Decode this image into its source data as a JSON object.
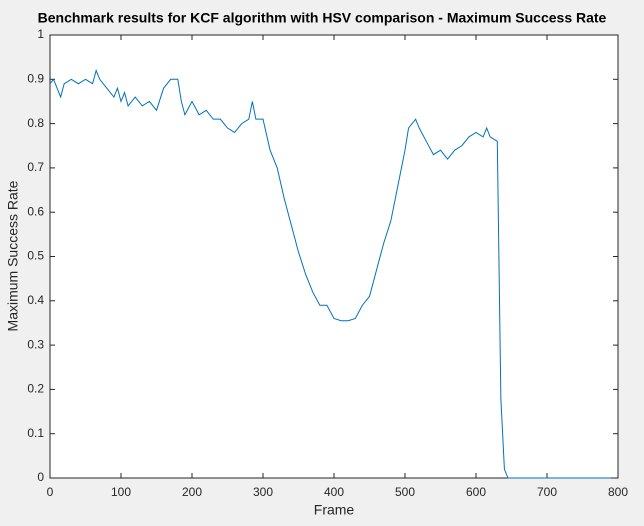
{
  "chart_data": {
    "type": "line",
    "title": "Benchmark results for KCF algorithm with HSV comparison - Maximum Success Rate",
    "x_label": "Frame",
    "y_label": "Maximum Success Rate",
    "xlim": [
      0,
      800
    ],
    "xticks": [
      0,
      100,
      200,
      300,
      400,
      500,
      600,
      700,
      800
    ],
    "ylim": [
      0,
      1
    ],
    "yticks": [
      0,
      0.1,
      0.2,
      0.3,
      0.4,
      0.5,
      0.6,
      0.7,
      0.8,
      0.9,
      1
    ],
    "grid": false,
    "series": [
      {
        "color": "#0072bd",
        "x": [
          0,
          5,
          10,
          15,
          20,
          30,
          40,
          50,
          60,
          65,
          70,
          80,
          90,
          95,
          100,
          105,
          110,
          120,
          130,
          140,
          150,
          160,
          170,
          180,
          185,
          190,
          200,
          210,
          220,
          230,
          240,
          250,
          260,
          270,
          280,
          285,
          290,
          300,
          310,
          320,
          330,
          340,
          350,
          360,
          370,
          380,
          390,
          400,
          410,
          420,
          430,
          440,
          450,
          460,
          470,
          480,
          490,
          500,
          505,
          510,
          515,
          520,
          530,
          540,
          550,
          560,
          570,
          580,
          590,
          600,
          610,
          615,
          620,
          630,
          635,
          640,
          645,
          700,
          790
        ],
        "values": [
          0.89,
          0.9,
          0.88,
          0.86,
          0.89,
          0.9,
          0.89,
          0.9,
          0.89,
          0.92,
          0.9,
          0.88,
          0.86,
          0.88,
          0.85,
          0.87,
          0.84,
          0.86,
          0.84,
          0.85,
          0.83,
          0.88,
          0.9,
          0.9,
          0.85,
          0.82,
          0.85,
          0.82,
          0.83,
          0.81,
          0.81,
          0.79,
          0.78,
          0.8,
          0.81,
          0.85,
          0.81,
          0.81,
          0.74,
          0.7,
          0.63,
          0.57,
          0.51,
          0.46,
          0.42,
          0.39,
          0.39,
          0.36,
          0.355,
          0.355,
          0.36,
          0.39,
          0.41,
          0.47,
          0.53,
          0.58,
          0.66,
          0.74,
          0.79,
          0.8,
          0.81,
          0.79,
          0.76,
          0.73,
          0.74,
          0.72,
          0.74,
          0.75,
          0.77,
          0.78,
          0.77,
          0.79,
          0.77,
          0.76,
          0.18,
          0.02,
          0,
          0,
          0
        ]
      }
    ]
  }
}
